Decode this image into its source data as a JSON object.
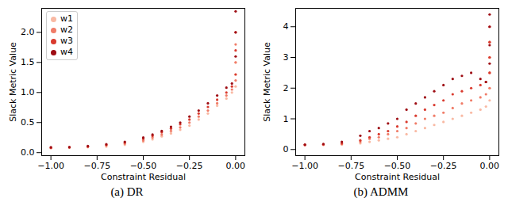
{
  "chart_data": [
    {
      "type": "scatter",
      "title": "(a) DR",
      "x_label": "Constraint Residual",
      "y_label": "Slack Metric Value",
      "xlim": [
        -1.05,
        0.05
      ],
      "xticks": [
        {
          "value": -1,
          "label": "−1.00"
        },
        {
          "value": -0.75,
          "label": "−0.75"
        },
        {
          "value": -0.5,
          "label": "−0.50"
        },
        {
          "value": -0.25,
          "label": "−0.25"
        },
        {
          "value": 0,
          "label": "0.00"
        }
      ],
      "ylim": [
        -0.05,
        2.4
      ],
      "yticks": [
        {
          "value": 0,
          "label": "0.0"
        },
        {
          "value": 0.5,
          "label": "0.5"
        },
        {
          "value": 1,
          "label": "1.0"
        },
        {
          "value": 1.5,
          "label": "1.5"
        },
        {
          "value": 2,
          "label": "2.0"
        }
      ],
      "legend": "upper left",
      "marker": "dot",
      "series": [
        {
          "name": "w1",
          "color": "#f9b9a3",
          "x": [
            -1,
            -0.9,
            -0.8,
            -0.7,
            -0.6,
            -0.5,
            -0.45,
            -0.4,
            -0.35,
            -0.3,
            -0.25,
            -0.2,
            -0.15,
            -0.1,
            -0.05,
            -0.02,
            0,
            0,
            0
          ],
          "values": [
            0.08,
            0.08,
            0.09,
            0.1,
            0.13,
            0.18,
            0.22,
            0.27,
            0.32,
            0.38,
            0.45,
            0.55,
            0.65,
            0.78,
            0.9,
            1.0,
            1.1,
            1.3,
            1.5
          ]
        },
        {
          "name": "w2",
          "color": "#f07c68",
          "x": [
            -1,
            -0.9,
            -0.8,
            -0.7,
            -0.6,
            -0.5,
            -0.45,
            -0.4,
            -0.35,
            -0.3,
            -0.25,
            -0.2,
            -0.15,
            -0.1,
            -0.05,
            -0.02,
            0,
            0,
            0
          ],
          "values": [
            0.08,
            0.09,
            0.1,
            0.12,
            0.15,
            0.2,
            0.25,
            0.3,
            0.36,
            0.42,
            0.5,
            0.6,
            0.7,
            0.82,
            0.95,
            1.05,
            1.2,
            1.5,
            1.8
          ]
        },
        {
          "name": "w3",
          "color": "#d93a2e",
          "x": [
            -1,
            -0.9,
            -0.8,
            -0.7,
            -0.6,
            -0.5,
            -0.45,
            -0.4,
            -0.35,
            -0.3,
            -0.25,
            -0.2,
            -0.15,
            -0.1,
            -0.05,
            -0.02,
            0,
            0,
            0
          ],
          "values": [
            0.08,
            0.09,
            0.1,
            0.13,
            0.17,
            0.23,
            0.28,
            0.34,
            0.4,
            0.47,
            0.55,
            0.65,
            0.76,
            0.88,
            1.0,
            1.1,
            1.3,
            1.7,
            2.0
          ]
        },
        {
          "name": "w4",
          "color": "#9e0d14",
          "x": [
            -1,
            -0.9,
            -0.8,
            -0.7,
            -0.6,
            -0.5,
            -0.45,
            -0.4,
            -0.35,
            -0.3,
            -0.25,
            -0.2,
            -0.15,
            -0.1,
            -0.05,
            -0.02,
            0,
            0,
            0
          ],
          "values": [
            0.09,
            0.09,
            0.11,
            0.14,
            0.18,
            0.25,
            0.3,
            0.36,
            0.43,
            0.5,
            0.6,
            0.7,
            0.82,
            0.95,
            1.08,
            1.15,
            1.6,
            2.0,
            2.35
          ]
        }
      ]
    },
    {
      "type": "scatter",
      "title": "(b) ADMM",
      "x_label": "Constraint Residual",
      "y_label": "Slack Metric Value",
      "xlim": [
        -1.05,
        0.05
      ],
      "xticks": [
        {
          "value": -1,
          "label": "−1.00"
        },
        {
          "value": -0.75,
          "label": "−0.75"
        },
        {
          "value": -0.5,
          "label": "−0.50"
        },
        {
          "value": -0.25,
          "label": "−0.25"
        },
        {
          "value": 0,
          "label": "0.00"
        }
      ],
      "ylim": [
        -0.2,
        4.6
      ],
      "yticks": [
        0,
        1,
        2,
        3,
        4
      ],
      "marker": "dot",
      "series": [
        {
          "name": "w1",
          "color": "#f9b9a3",
          "x": [
            -1,
            -0.9,
            -0.8,
            -0.7,
            -0.65,
            -0.6,
            -0.55,
            -0.5,
            -0.45,
            -0.4,
            -0.35,
            -0.3,
            -0.25,
            -0.2,
            -0.15,
            -0.1,
            -0.05,
            -0.02,
            0,
            0,
            0,
            0
          ],
          "values": [
            0.15,
            0.15,
            0.16,
            0.2,
            0.25,
            0.3,
            0.35,
            0.4,
            0.5,
            0.6,
            0.7,
            0.8,
            0.9,
            1.0,
            1.1,
            1.2,
            1.3,
            1.4,
            1.6,
            2.0,
            2.5,
            3.0
          ]
        },
        {
          "name": "w2",
          "color": "#f07c68",
          "x": [
            -1,
            -0.9,
            -0.8,
            -0.7,
            -0.65,
            -0.6,
            -0.55,
            -0.5,
            -0.45,
            -0.4,
            -0.35,
            -0.3,
            -0.25,
            -0.2,
            -0.15,
            -0.1,
            -0.05,
            -0.02,
            0,
            0,
            0,
            0
          ],
          "values": [
            0.15,
            0.16,
            0.18,
            0.25,
            0.35,
            0.4,
            0.5,
            0.6,
            0.7,
            0.85,
            1.0,
            1.1,
            1.2,
            1.35,
            1.5,
            1.6,
            1.7,
            1.8,
            2.0,
            2.5,
            3.0,
            3.5
          ]
        },
        {
          "name": "w3",
          "color": "#d93a2e",
          "x": [
            -1,
            -0.9,
            -0.8,
            -0.7,
            -0.65,
            -0.6,
            -0.55,
            -0.5,
            -0.45,
            -0.4,
            -0.35,
            -0.3,
            -0.25,
            -0.2,
            -0.15,
            -0.1,
            -0.05,
            -0.02,
            0,
            0,
            0,
            0
          ],
          "values": [
            0.15,
            0.17,
            0.2,
            0.3,
            0.4,
            0.5,
            0.6,
            0.75,
            0.9,
            1.1,
            1.3,
            1.45,
            1.6,
            1.8,
            1.9,
            2.0,
            2.1,
            2.2,
            2.5,
            3.0,
            3.5,
            4.0
          ]
        },
        {
          "name": "w4",
          "color": "#9e0d14",
          "x": [
            -1,
            -0.9,
            -0.8,
            -0.7,
            -0.65,
            -0.6,
            -0.55,
            -0.5,
            -0.45,
            -0.4,
            -0.35,
            -0.3,
            -0.25,
            -0.2,
            -0.15,
            -0.1,
            -0.05,
            -0.02,
            0,
            0,
            0,
            0
          ],
          "values": [
            0.16,
            0.18,
            0.25,
            0.45,
            0.6,
            0.7,
            0.85,
            1.0,
            1.3,
            1.5,
            1.7,
            1.9,
            2.1,
            2.3,
            2.4,
            2.5,
            2.3,
            2.2,
            2.8,
            3.4,
            4.0,
            4.4
          ]
        }
      ]
    }
  ]
}
